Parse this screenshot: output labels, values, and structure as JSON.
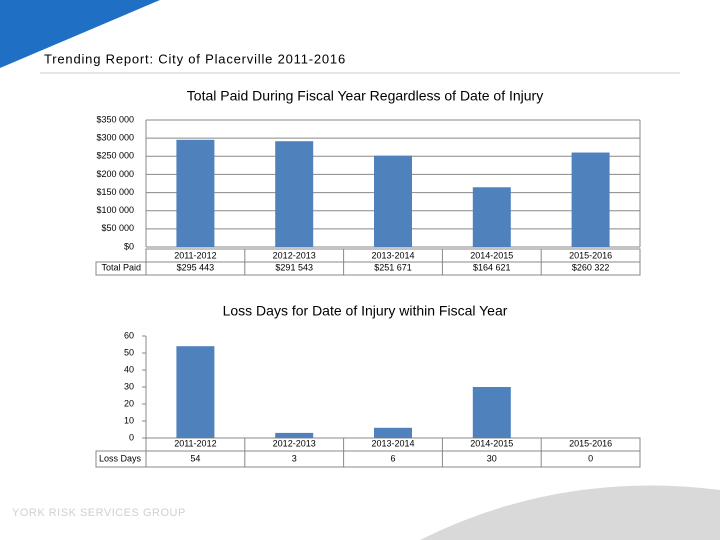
{
  "title": "Trending Report: City of Placerville 2011-2016",
  "footer": "YORK RISK SERVICES GROUP",
  "chart_data": [
    {
      "type": "bar",
      "title": "Total Paid During Fiscal Year Regardless of Date of Injury",
      "categories": [
        "2011-2012",
        "2012-2013",
        "2013-2014",
        "2014-2015",
        "2015-2016"
      ],
      "values": [
        295443,
        291543,
        251671,
        164621,
        260322
      ],
      "value_labels": [
        "$295 443",
        "$291 543",
        "$251 671",
        "$164 621",
        "$260 322"
      ],
      "table_label": "Total Paid",
      "color": "#4f81bd",
      "ylim": [
        0,
        350000
      ],
      "yticks": [
        {
          "value": 0,
          "label": "$0"
        },
        {
          "value": 50000,
          "label": "$50 000"
        },
        {
          "value": 100000,
          "label": "$100 000"
        },
        {
          "value": 150000,
          "label": "$150 000"
        },
        {
          "value": 200000,
          "label": "$200 000"
        },
        {
          "value": 250000,
          "label": "$250 000"
        },
        {
          "value": 300000,
          "label": "$300 000"
        },
        {
          "value": 350000,
          "label": "$350 000"
        }
      ],
      "grid": true
    },
    {
      "type": "bar",
      "title": "Loss Days for Date of Injury within Fiscal Year",
      "categories": [
        "2011-2012",
        "2012-2013",
        "2013-2014",
        "2014-2015",
        "2015-2016"
      ],
      "values": [
        54,
        3,
        6,
        30,
        0
      ],
      "table_label": "Loss Days",
      "color": "#4f81bd",
      "ylim": [
        0,
        60
      ],
      "yticks": [
        0,
        10,
        20,
        30,
        40,
        50,
        60
      ],
      "grid": false
    }
  ]
}
